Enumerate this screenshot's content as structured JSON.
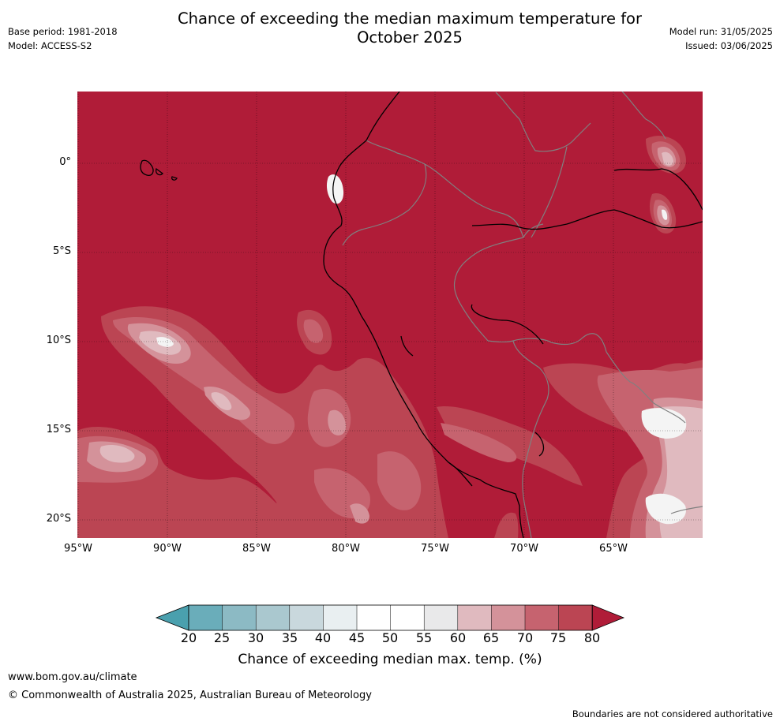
{
  "header": {
    "title_line1": "Chance of exceeding the median maximum temperature for",
    "title_line2": "October 2025",
    "base_period": "Base period: 1981-2018",
    "model": "Model: ACCESS-S2",
    "model_run": "Model run: 31/05/2025",
    "issued": "Issued: 03/06/2025"
  },
  "map": {
    "lat_labels": [
      "0°",
      "5°S",
      "10°S",
      "15°S",
      "20°S"
    ],
    "lon_labels": [
      "95°W",
      "90°W",
      "85°W",
      "80°W",
      "75°W",
      "70°W",
      "65°W"
    ],
    "background_class": "80+",
    "background_color": "#b01c38",
    "coastline_color": "#000000",
    "border_color": "#808080"
  },
  "colorbar": {
    "tick_labels": [
      "20",
      "25",
      "30",
      "35",
      "40",
      "45",
      "50",
      "55",
      "60",
      "65",
      "70",
      "75",
      "80"
    ],
    "colors": [
      "#4aa0ae",
      "#6aadba",
      "#8cbac4",
      "#aac8cf",
      "#c9d8dd",
      "#e9eff1",
      "#ffffff",
      "#ffffff",
      "#e9e9ea",
      "#e0babf",
      "#d4929a",
      "#c6636f",
      "#bb4553",
      "#b01c38"
    ],
    "title": "Chance of exceeding median max. temp. (%)"
  },
  "footer": {
    "website": "www.bom.gov.au/climate",
    "copyright": "© Commonwealth of Australia 2025, Australian Bureau of Meteorology",
    "disclaimer": "Boundaries are not considered authoritative"
  }
}
